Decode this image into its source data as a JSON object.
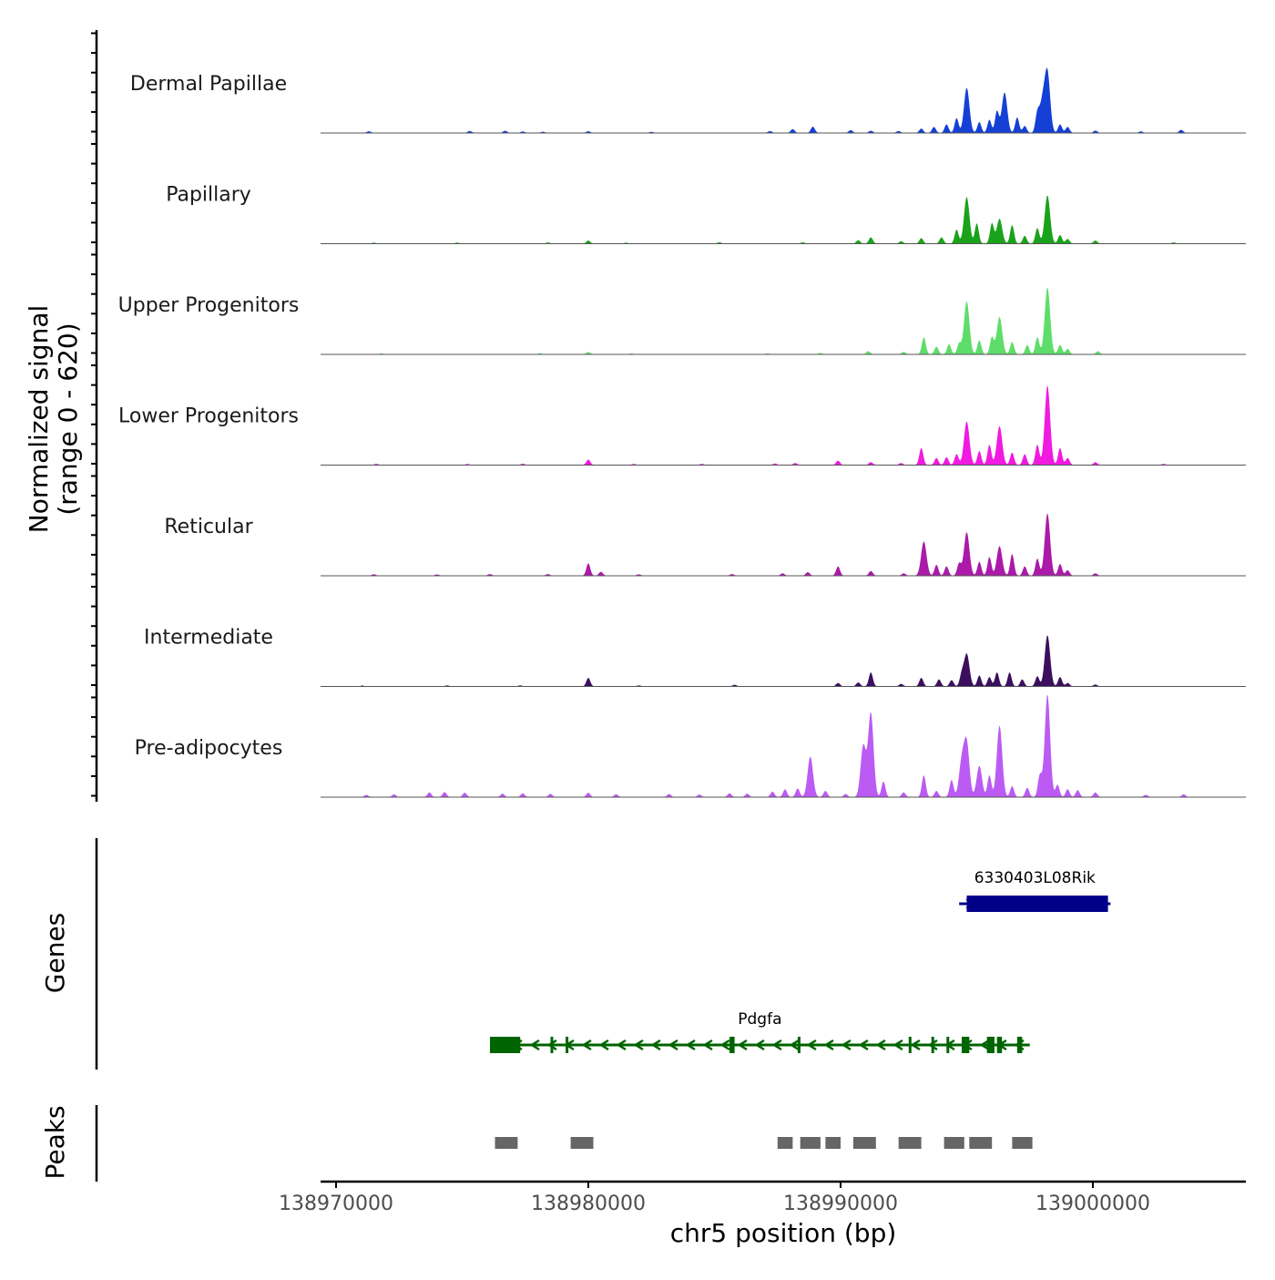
{
  "chart_data": {
    "type": "area",
    "title": "",
    "ylabel_line1": "Normalized signal",
    "ylabel_line2": "(range 0 - 620)",
    "y_range": [
      0,
      620
    ],
    "genes_label": "Genes",
    "peaks_label": "Peaks",
    "xlabel": "chr5 position (bp)",
    "x_range": [
      138969500,
      139006300
    ],
    "x_ticks": [
      {
        "value": 138970000,
        "label": "138970000"
      },
      {
        "value": 138980000,
        "label": "138980000"
      },
      {
        "value": 138990000,
        "label": "138990000"
      },
      {
        "value": 139000000,
        "label": "139000000"
      }
    ],
    "tracks": [
      {
        "name": "Dermal Papillae",
        "color": "#1540d6",
        "peaks": [
          [
            138971300,
            10
          ],
          [
            138975300,
            12
          ],
          [
            138976700,
            14
          ],
          [
            138977400,
            9
          ],
          [
            138978200,
            7
          ],
          [
            138980000,
            11
          ],
          [
            138982500,
            7
          ],
          [
            138987200,
            12
          ],
          [
            138988100,
            24
          ],
          [
            138988900,
            40
          ],
          [
            138990400,
            18
          ],
          [
            138991200,
            14
          ],
          [
            138992300,
            12
          ],
          [
            138993200,
            28
          ],
          [
            138993700,
            38
          ],
          [
            138994200,
            55
          ],
          [
            138994600,
            95
          ],
          [
            138995000,
            290
          ],
          [
            138995500,
            70
          ],
          [
            138995900,
            85
          ],
          [
            138996200,
            140
          ],
          [
            138996500,
            260
          ],
          [
            138997000,
            100
          ],
          [
            138997300,
            45
          ],
          [
            138997800,
            120
          ],
          [
            138998000,
            190
          ],
          [
            138998200,
            380
          ],
          [
            138998700,
            55
          ],
          [
            138999000,
            38
          ],
          [
            139000100,
            15
          ],
          [
            139001900,
            9
          ],
          [
            139003500,
            20
          ]
        ]
      },
      {
        "name": "Papillary",
        "color": "#1aa31a",
        "peaks": [
          [
            138971500,
            6
          ],
          [
            138974800,
            6
          ],
          [
            138978400,
            7
          ],
          [
            138980000,
            20
          ],
          [
            138981500,
            6
          ],
          [
            138985200,
            8
          ],
          [
            138988500,
            8
          ],
          [
            138990700,
            22
          ],
          [
            138991200,
            40
          ],
          [
            138992400,
            15
          ],
          [
            138993200,
            35
          ],
          [
            138994000,
            40
          ],
          [
            138994600,
            90
          ],
          [
            138995000,
            300
          ],
          [
            138995400,
            130
          ],
          [
            138996000,
            130
          ],
          [
            138996300,
            160
          ],
          [
            138996800,
            120
          ],
          [
            138997300,
            50
          ],
          [
            138997800,
            100
          ],
          [
            138998200,
            310
          ],
          [
            138998700,
            55
          ],
          [
            138999000,
            30
          ],
          [
            139000100,
            20
          ],
          [
            139003200,
            7
          ]
        ]
      },
      {
        "name": "Upper Progenitors",
        "color": "#5fdd6a",
        "peaks": [
          [
            138971800,
            5
          ],
          [
            138978100,
            7
          ],
          [
            138980000,
            15
          ],
          [
            138981700,
            5
          ],
          [
            138987100,
            6
          ],
          [
            138989200,
            8
          ],
          [
            138991100,
            20
          ],
          [
            138992500,
            15
          ],
          [
            138993300,
            110
          ],
          [
            138993800,
            50
          ],
          [
            138994300,
            65
          ],
          [
            138994700,
            70
          ],
          [
            138995000,
            340
          ],
          [
            138995500,
            90
          ],
          [
            138996000,
            110
          ],
          [
            138996300,
            240
          ],
          [
            138996800,
            80
          ],
          [
            138997400,
            60
          ],
          [
            138997800,
            110
          ],
          [
            138998200,
            430
          ],
          [
            138998700,
            60
          ],
          [
            138999000,
            35
          ],
          [
            139000200,
            20
          ]
        ]
      },
      {
        "name": "Lower Progenitors",
        "color": "#f01ae0",
        "peaks": [
          [
            138971600,
            7
          ],
          [
            138975200,
            6
          ],
          [
            138977400,
            8
          ],
          [
            138980000,
            35
          ],
          [
            138981800,
            7
          ],
          [
            138984500,
            7
          ],
          [
            138987400,
            9
          ],
          [
            138988200,
            12
          ],
          [
            138989900,
            28
          ],
          [
            138991200,
            18
          ],
          [
            138992400,
            12
          ],
          [
            138993200,
            110
          ],
          [
            138993800,
            45
          ],
          [
            138994200,
            50
          ],
          [
            138994600,
            70
          ],
          [
            138995000,
            280
          ],
          [
            138995500,
            90
          ],
          [
            138995900,
            130
          ],
          [
            138996300,
            250
          ],
          [
            138996800,
            80
          ],
          [
            138997300,
            70
          ],
          [
            138997800,
            130
          ],
          [
            138998200,
            510
          ],
          [
            138998700,
            110
          ],
          [
            138999000,
            45
          ],
          [
            139000100,
            18
          ],
          [
            139002800,
            7
          ]
        ]
      },
      {
        "name": "Reticular",
        "color": "#ab1aa8",
        "peaks": [
          [
            138971500,
            9
          ],
          [
            138974000,
            8
          ],
          [
            138976100,
            10
          ],
          [
            138978400,
            10
          ],
          [
            138980000,
            80
          ],
          [
            138980500,
            25
          ],
          [
            138982000,
            8
          ],
          [
            138985700,
            10
          ],
          [
            138987700,
            15
          ],
          [
            138988700,
            22
          ],
          [
            138989900,
            60
          ],
          [
            138991200,
            30
          ],
          [
            138992500,
            15
          ],
          [
            138993300,
            220
          ],
          [
            138993800,
            70
          ],
          [
            138994200,
            60
          ],
          [
            138994700,
            80
          ],
          [
            138995000,
            280
          ],
          [
            138995500,
            90
          ],
          [
            138995900,
            120
          ],
          [
            138996300,
            190
          ],
          [
            138996800,
            140
          ],
          [
            138997300,
            60
          ],
          [
            138997800,
            110
          ],
          [
            138998200,
            400
          ],
          [
            138998700,
            75
          ],
          [
            138999000,
            35
          ],
          [
            139000100,
            15
          ]
        ]
      },
      {
        "name": "Intermediate",
        "color": "#3b0f5e",
        "peaks": [
          [
            138971000,
            6
          ],
          [
            138974400,
            6
          ],
          [
            138977300,
            6
          ],
          [
            138980000,
            55
          ],
          [
            138982000,
            6
          ],
          [
            138985800,
            10
          ],
          [
            138989900,
            22
          ],
          [
            138990700,
            25
          ],
          [
            138991200,
            90
          ],
          [
            138992400,
            16
          ],
          [
            138993200,
            55
          ],
          [
            138993900,
            45
          ],
          [
            138994400,
            40
          ],
          [
            138994800,
            70
          ],
          [
            138995000,
            210
          ],
          [
            138995500,
            70
          ],
          [
            138995900,
            60
          ],
          [
            138996200,
            90
          ],
          [
            138996700,
            90
          ],
          [
            138997200,
            45
          ],
          [
            138997800,
            65
          ],
          [
            138998200,
            330
          ],
          [
            138998700,
            60
          ],
          [
            138999000,
            22
          ],
          [
            139000100,
            12
          ]
        ]
      },
      {
        "name": "Pre-adipocytes",
        "color": "#bb5bf3",
        "peaks": [
          [
            138971200,
            14
          ],
          [
            138972300,
            17
          ],
          [
            138973700,
            30
          ],
          [
            138974300,
            32
          ],
          [
            138975100,
            28
          ],
          [
            138976600,
            22
          ],
          [
            138977400,
            24
          ],
          [
            138978500,
            20
          ],
          [
            138980000,
            28
          ],
          [
            138981100,
            18
          ],
          [
            138983200,
            20
          ],
          [
            138984400,
            16
          ],
          [
            138985600,
            24
          ],
          [
            138986300,
            22
          ],
          [
            138987300,
            35
          ],
          [
            138987800,
            50
          ],
          [
            138988300,
            55
          ],
          [
            138988800,
            260
          ],
          [
            138989400,
            40
          ],
          [
            138990200,
            20
          ],
          [
            138990900,
            330
          ],
          [
            138991200,
            540
          ],
          [
            138991700,
            100
          ],
          [
            138992500,
            30
          ],
          [
            138993300,
            140
          ],
          [
            138993800,
            40
          ],
          [
            138994400,
            110
          ],
          [
            138994800,
            220
          ],
          [
            138995000,
            340
          ],
          [
            138995500,
            200
          ],
          [
            138995900,
            140
          ],
          [
            138996300,
            460
          ],
          [
            138996800,
            70
          ],
          [
            138997400,
            60
          ],
          [
            138997900,
            140
          ],
          [
            138998200,
            660
          ],
          [
            138998600,
            80
          ],
          [
            138999000,
            50
          ],
          [
            138999400,
            45
          ],
          [
            139000100,
            30
          ],
          [
            139002100,
            14
          ],
          [
            139003600,
            18
          ]
        ]
      }
    ],
    "genes": [
      {
        "name": "6330403L08Rik",
        "color": "#000088",
        "strand": "+",
        "start": 138994700,
        "end": 139000700,
        "row": 0,
        "exons": [
          [
            138995000,
            139000600
          ]
        ]
      },
      {
        "name": "Pdgfa",
        "color": "#006400",
        "strand": "-",
        "start": 138976100,
        "end": 138997500,
        "row": 1,
        "exons": [
          [
            138976100,
            138977300
          ],
          [
            138978500,
            138978600
          ],
          [
            138979100,
            138979200
          ],
          [
            138985600,
            138985800
          ],
          [
            138988300,
            138988400
          ],
          [
            138992700,
            138992800
          ],
          [
            138993600,
            138993700
          ],
          [
            138994200,
            138994300
          ],
          [
            138994800,
            138995100
          ],
          [
            138995800,
            138996100
          ],
          [
            138996200,
            138996400
          ],
          [
            138997000,
            138997200
          ]
        ]
      }
    ],
    "peaks_regions": [
      [
        138976300,
        138977200
      ],
      [
        138979300,
        138980200
      ],
      [
        138987500,
        138988100
      ],
      [
        138988400,
        138989200
      ],
      [
        138989400,
        138990000
      ],
      [
        138990500,
        138991400
      ],
      [
        138992300,
        138993200
      ],
      [
        138994100,
        138994900
      ],
      [
        138995100,
        138996000
      ],
      [
        138996800,
        138997600
      ]
    ]
  }
}
